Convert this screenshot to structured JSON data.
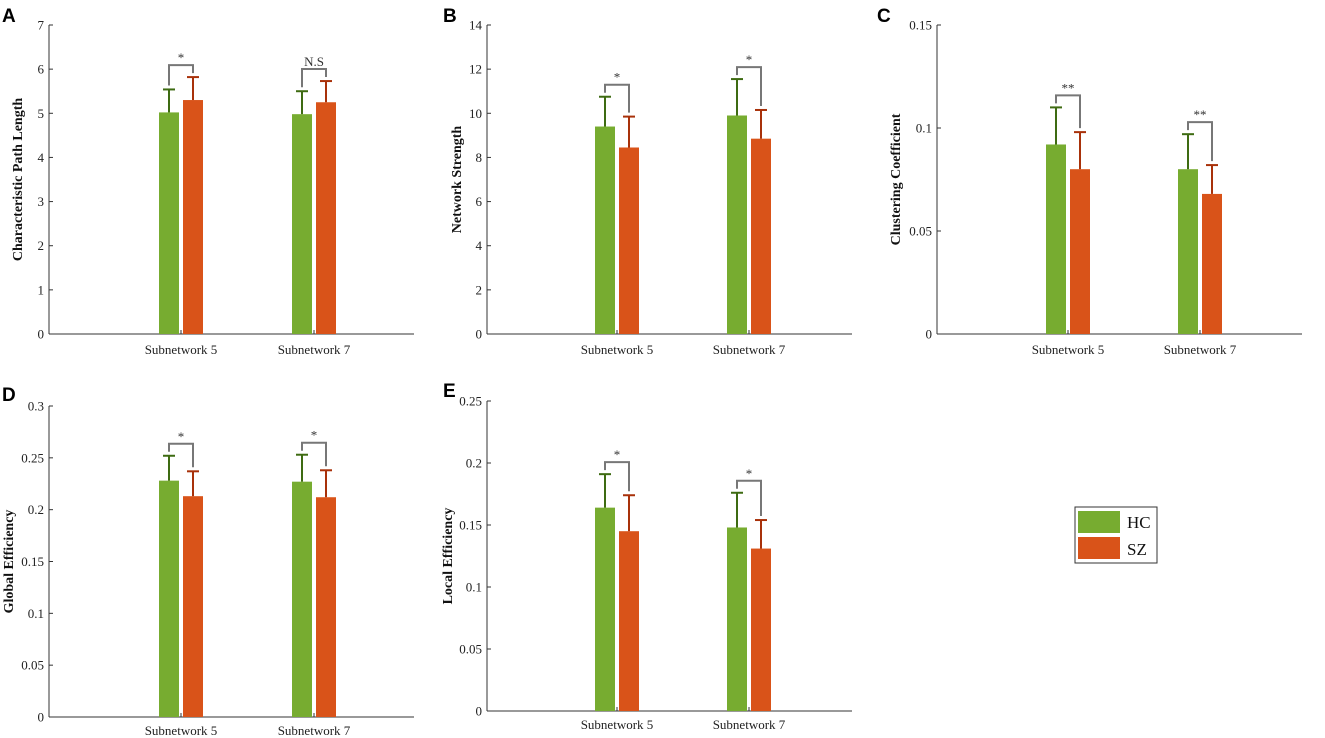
{
  "figure": {
    "legend": [
      {
        "label": "HC",
        "color": "#77AC30"
      },
      {
        "label": "SZ",
        "color": "#D95319"
      }
    ]
  },
  "chart_data": [
    {
      "panel": "A",
      "type": "bar",
      "ylabel": "Characteristic Path Length",
      "categories": [
        "Subnetwork 5",
        "Subnetwork 7"
      ],
      "ylim": [
        0,
        7
      ],
      "yticks": [
        0,
        1,
        2,
        3,
        4,
        5,
        6,
        7
      ],
      "ytick_labels": [
        "0",
        "1",
        "2",
        "3",
        "4",
        "5",
        "6",
        "7"
      ],
      "series": [
        {
          "name": "HC",
          "values": [
            5.02,
            4.98
          ],
          "errors": [
            0.52,
            0.52
          ]
        },
        {
          "name": "SZ",
          "values": [
            5.3,
            5.25
          ],
          "errors": [
            0.52,
            0.48
          ]
        }
      ],
      "significance": [
        "*",
        "N.S"
      ]
    },
    {
      "panel": "B",
      "type": "bar",
      "ylabel": "Network Strength",
      "categories": [
        "Subnetwork 5",
        "Subnetwork 7"
      ],
      "ylim": [
        0,
        14
      ],
      "yticks": [
        0,
        2,
        4,
        6,
        8,
        10,
        12,
        14
      ],
      "ytick_labels": [
        "0",
        "2",
        "4",
        "6",
        "8",
        "10",
        "12",
        "14"
      ],
      "series": [
        {
          "name": "HC",
          "values": [
            9.4,
            9.9
          ],
          "errors": [
            1.35,
            1.65
          ]
        },
        {
          "name": "SZ",
          "values": [
            8.45,
            8.85
          ],
          "errors": [
            1.4,
            1.3
          ]
        }
      ],
      "significance": [
        "*",
        "*"
      ]
    },
    {
      "panel": "C",
      "type": "bar",
      "ylabel": "Clustering Coefficient",
      "categories": [
        "Subnetwork 5",
        "Subnetwork 7"
      ],
      "ylim": [
        0,
        0.15
      ],
      "yticks": [
        0,
        0.05,
        0.1,
        0.15
      ],
      "ytick_labels": [
        "0",
        "0.05",
        "0.1",
        "0.15"
      ],
      "series": [
        {
          "name": "HC",
          "values": [
            0.092,
            0.08
          ],
          "errors": [
            0.018,
            0.017
          ]
        },
        {
          "name": "SZ",
          "values": [
            0.08,
            0.068
          ],
          "errors": [
            0.018,
            0.014
          ]
        }
      ],
      "significance": [
        "**",
        "**"
      ]
    },
    {
      "panel": "D",
      "type": "bar",
      "ylabel": "Global Efficiency",
      "categories": [
        "Subnetwork 5",
        "Subnetwork 7"
      ],
      "ylim": [
        0,
        0.3
      ],
      "yticks": [
        0,
        0.05,
        0.1,
        0.15,
        0.2,
        0.25,
        0.3
      ],
      "ytick_labels": [
        "0",
        "0.05",
        "0.1",
        "0.15",
        "0.2",
        "0.25",
        "0.3"
      ],
      "series": [
        {
          "name": "HC",
          "values": [
            0.228,
            0.227
          ],
          "errors": [
            0.024,
            0.026
          ]
        },
        {
          "name": "SZ",
          "values": [
            0.213,
            0.212
          ],
          "errors": [
            0.024,
            0.026
          ]
        }
      ],
      "significance": [
        "*",
        "*"
      ]
    },
    {
      "panel": "E",
      "type": "bar",
      "ylabel": "Local Efficiency",
      "categories": [
        "Subnetwork 5",
        "Subnetwork 7"
      ],
      "ylim": [
        0,
        0.25
      ],
      "yticks": [
        0,
        0.05,
        0.1,
        0.15,
        0.2,
        0.25
      ],
      "ytick_labels": [
        "0",
        "0.05",
        "0.1",
        "0.15",
        "0.2",
        "0.25"
      ],
      "series": [
        {
          "name": "HC",
          "values": [
            0.164,
            0.148
          ],
          "errors": [
            0.027,
            0.028
          ]
        },
        {
          "name": "SZ",
          "values": [
            0.145,
            0.131
          ],
          "errors": [
            0.029,
            0.023
          ]
        }
      ],
      "significance": [
        "*",
        "*"
      ]
    }
  ]
}
